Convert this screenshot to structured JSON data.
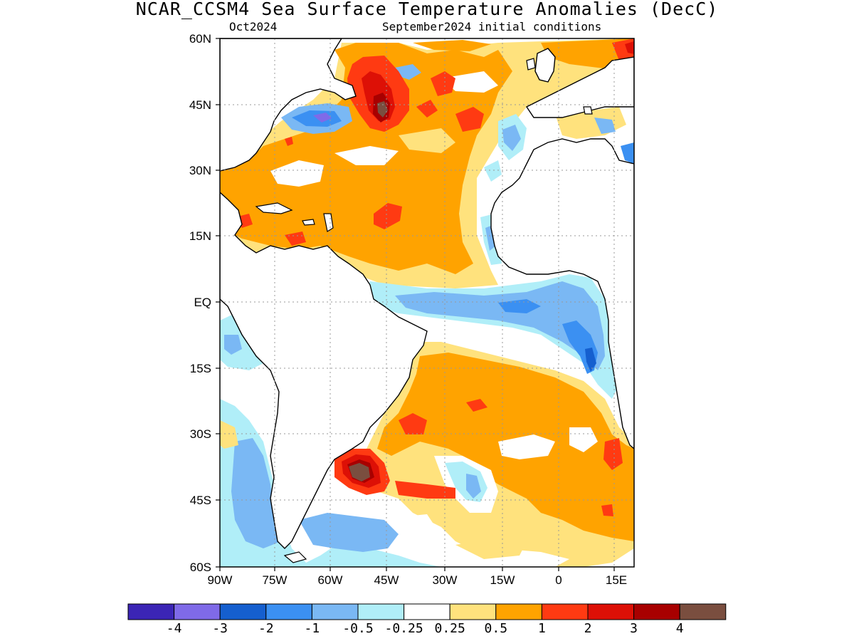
{
  "title": "NCAR_CCSM4 Sea Surface Temperature Anomalies (DecC)",
  "forecast_month": "Oct2024",
  "initial_conditions": "September2024 initial conditions",
  "map": {
    "region": "Atlantic Ocean",
    "lat_labels": [
      "60N",
      "45N",
      "30N",
      "15N",
      "EQ",
      "15S",
      "30S",
      "45S",
      "60S"
    ],
    "lon_labels": [
      "90W",
      "75W",
      "60W",
      "45W",
      "30W",
      "15W",
      "0",
      "15E"
    ]
  },
  "colorbar": {
    "colors": [
      "#3b25b5",
      "#7f6ae8",
      "#155fcf",
      "#3b90f2",
      "#7ab8f4",
      "#b0eef8",
      "#ffffff",
      "#ffe27d",
      "#ffa300",
      "#ff3a12",
      "#dd1006",
      "#a80000",
      "#7a4e3f"
    ],
    "labels": [
      "-4",
      "-3",
      "-2",
      "-1",
      "-0.5",
      "-0.25",
      "0.25",
      "0.5",
      "1",
      "2",
      "3",
      "4"
    ]
  }
}
